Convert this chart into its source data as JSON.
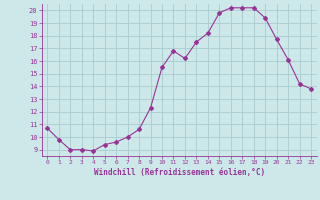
{
  "x": [
    0,
    1,
    2,
    3,
    4,
    5,
    6,
    7,
    8,
    9,
    10,
    11,
    12,
    13,
    14,
    15,
    16,
    17,
    18,
    19,
    20,
    21,
    22,
    23
  ],
  "y": [
    10.7,
    9.8,
    9.0,
    9.0,
    8.9,
    9.4,
    9.6,
    10.0,
    10.6,
    12.3,
    15.5,
    16.8,
    16.2,
    17.5,
    18.2,
    19.8,
    20.2,
    20.2,
    20.2,
    19.4,
    17.7,
    16.1,
    14.2,
    13.8
  ],
  "line_color": "#993399",
  "marker": "D",
  "marker_size": 2.0,
  "bg_color": "#cce8e8",
  "grid_color": "#aacccc",
  "xlabel": "Windchill (Refroidissement éolien,°C)",
  "xlabel_color": "#993399",
  "tick_color": "#993399",
  "label_color": "#993399",
  "ylim": [
    8.5,
    20.5
  ],
  "yticks": [
    9,
    10,
    11,
    12,
    13,
    14,
    15,
    16,
    17,
    18,
    19,
    20
  ],
  "xlim": [
    -0.5,
    23.5
  ],
  "xticks": [
    0,
    1,
    2,
    3,
    4,
    5,
    6,
    7,
    8,
    9,
    10,
    11,
    12,
    13,
    14,
    15,
    16,
    17,
    18,
    19,
    20,
    21,
    22,
    23
  ]
}
